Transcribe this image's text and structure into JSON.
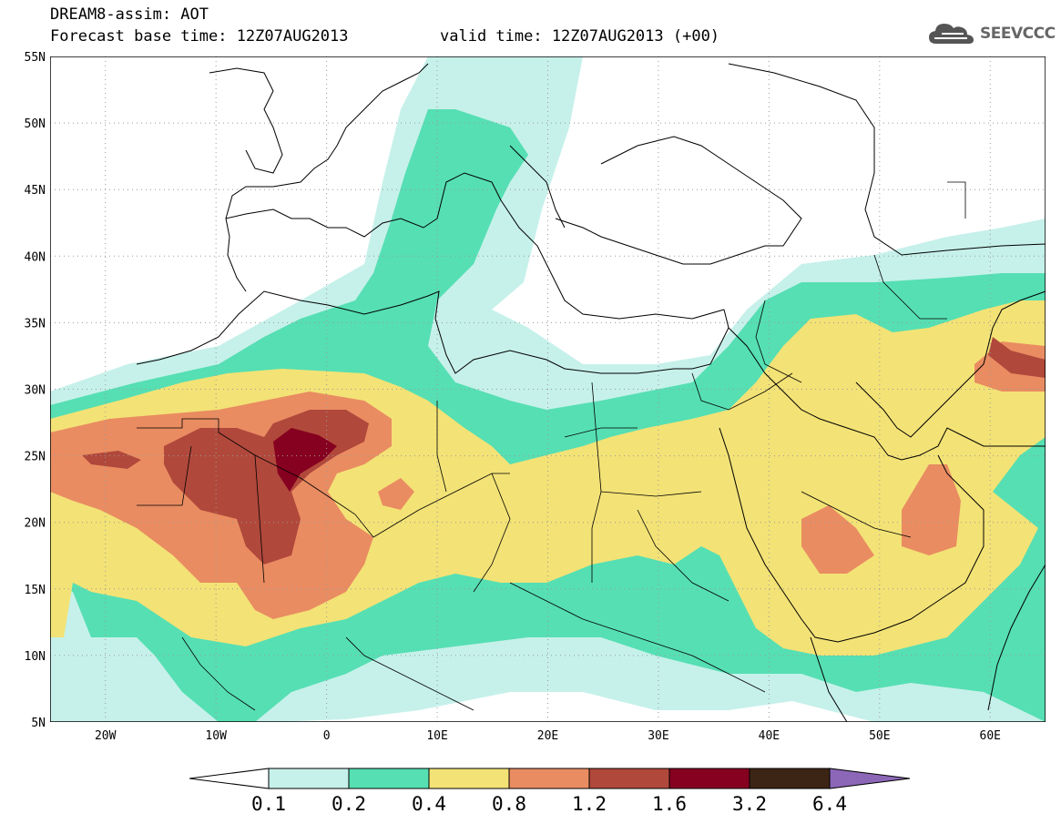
{
  "header": {
    "title": "DREAM8-assim: AOT",
    "base_time": "Forecast base time: 12Z07AUG2013",
    "valid_time": "valid time: 12Z07AUG2013 (+00)"
  },
  "logo": {
    "text": "SEEVCCC",
    "icon": "cloud-icon"
  },
  "map": {
    "lon_range": [
      -25,
      65
    ],
    "lat_range": [
      5,
      55
    ],
    "lat_labels": [
      "55N",
      "50N",
      "45N",
      "40N",
      "35N",
      "30N",
      "25N",
      "20N",
      "15N",
      "10N",
      "5N"
    ],
    "lon_labels": [
      "20W",
      "10W",
      "0",
      "10E",
      "20E",
      "30E",
      "40E",
      "50E",
      "60E"
    ],
    "gridlines": "dotted"
  },
  "legend": {
    "ticks": [
      "0.1",
      "0.2",
      "0.4",
      "0.8",
      "1.2",
      "1.6",
      "3.2",
      "6.4"
    ],
    "colors": [
      "#c6f0ea",
      "#56dfb2",
      "#f3e276",
      "#ea8c62",
      "#b1483c",
      "#86001f",
      "#3d2516"
    ],
    "over_color": "#8c67b7",
    "under_color": "#ffffff"
  }
}
